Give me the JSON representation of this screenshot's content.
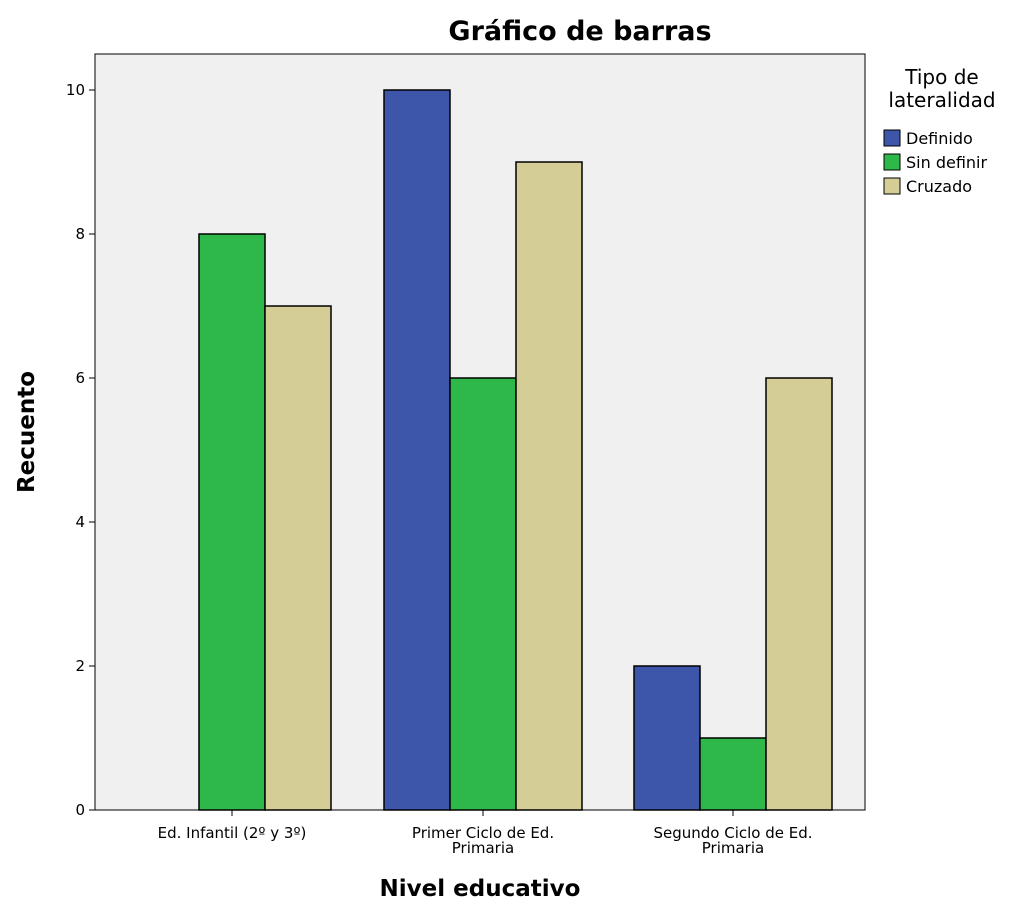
{
  "chart_data": {
    "type": "bar",
    "title": "Gráfico de barras",
    "xlabel": "Nivel educativo",
    "ylabel": "Recuento",
    "ylim": [
      0,
      10.5
    ],
    "yticks": [
      "0",
      "2",
      "4",
      "6",
      "8",
      "10"
    ],
    "categories": [
      [
        "Ed. Infantil (2º y 3º)"
      ],
      [
        "Primer Ciclo de Ed.",
        "Primaria"
      ],
      [
        "Segundo Ciclo de Ed.",
        "Primaria"
      ]
    ],
    "legend_title": [
      "Tipo de",
      "lateralidad"
    ],
    "legend_position": "right",
    "series": [
      {
        "name": "Definido",
        "color": "#3d56aa",
        "values": [
          0,
          10,
          2
        ]
      },
      {
        "name": "Sin definir",
        "color": "#2fb84a",
        "values": [
          8,
          6,
          1
        ]
      },
      {
        "name": "Cruzado",
        "color": "#d4cd96",
        "values": [
          7,
          9,
          6
        ]
      }
    ],
    "plot_background": "#f0f0f0",
    "grid": false
  }
}
